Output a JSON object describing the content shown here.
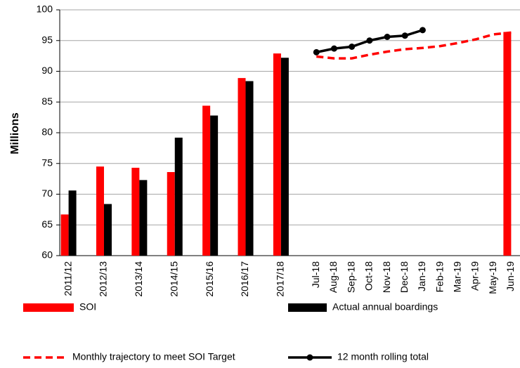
{
  "chart_data": {
    "type": "bar",
    "y_label": "Millions",
    "categories": [
      "2011/12",
      null,
      "2012/13",
      null,
      "2013/14",
      null,
      "2014/15",
      null,
      "2015/16",
      null,
      "2016/17",
      null,
      "2017/18",
      null,
      "Jul-18",
      "Aug-18",
      "Sep-18",
      "Oct-18",
      "Nov-18",
      "Dec-18",
      "Jan-19",
      "Feb-19",
      "Mar-19",
      "Apr-19",
      "May-19",
      "Jun-19"
    ],
    "series": [
      {
        "name": "SOI",
        "type": "bar",
        "color": "#ff0000",
        "values": [
          66.7,
          null,
          74.5,
          null,
          74.3,
          null,
          73.6,
          null,
          84.4,
          null,
          88.9,
          null,
          92.9,
          null,
          null,
          null,
          null,
          null,
          null,
          null,
          null,
          null,
          null,
          null,
          null,
          96.4
        ]
      },
      {
        "name": "Actual annual boardings",
        "type": "bar",
        "color": "#000000",
        "values": [
          70.6,
          null,
          68.4,
          null,
          72.3,
          null,
          79.2,
          null,
          82.8,
          null,
          88.4,
          null,
          92.2,
          null,
          null,
          null,
          null,
          null,
          null,
          null,
          null,
          null,
          null,
          null,
          null,
          null
        ]
      },
      {
        "name": "Monthly trajectory to meet SOI Target",
        "type": "line",
        "color": "#ff0000",
        "line_style": "dashed",
        "values": [
          null,
          null,
          null,
          null,
          null,
          null,
          null,
          null,
          null,
          null,
          null,
          null,
          null,
          null,
          92.4,
          92.1,
          92.1,
          92.7,
          93.2,
          93.6,
          93.8,
          94.1,
          94.6,
          95.2,
          96.0,
          96.3
        ]
      },
      {
        "name": "12 month rolling total",
        "type": "line",
        "color": "#000000",
        "line_style": "solid",
        "markers": true,
        "values": [
          null,
          null,
          null,
          null,
          null,
          null,
          null,
          null,
          null,
          null,
          null,
          null,
          null,
          null,
          93.1,
          93.7,
          94.0,
          95.0,
          95.6,
          95.8,
          96.7,
          null,
          null,
          null,
          null,
          null
        ]
      }
    ],
    "ylim": [
      60,
      100
    ],
    "yticks": [
      60,
      65,
      70,
      75,
      80,
      85,
      90,
      95,
      100
    ],
    "grid": true,
    "legend": "bottom"
  }
}
